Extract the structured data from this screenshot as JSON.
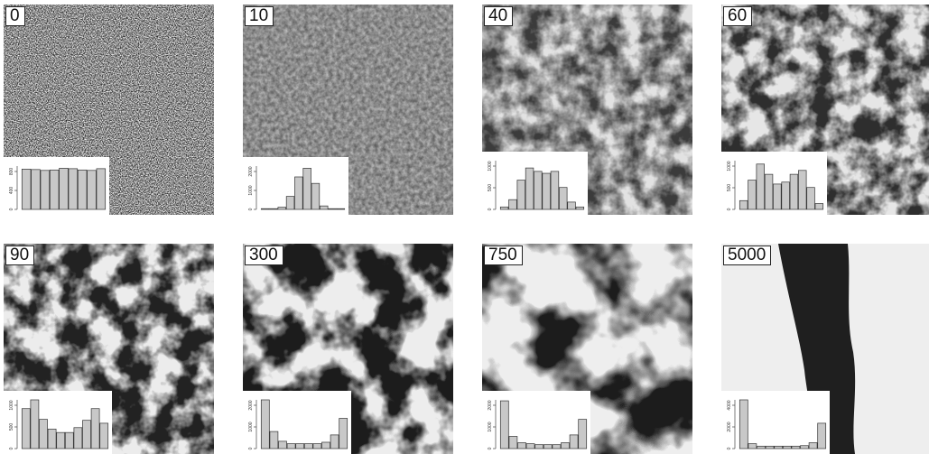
{
  "panels": [
    {
      "label": "0",
      "hist": [
        0.93,
        0.92,
        0.9,
        0.91,
        0.95,
        0.94,
        0.91,
        0.9,
        0.94
      ],
      "yticks": [
        "0",
        "400",
        "800"
      ]
    },
    {
      "label": "10",
      "hist": [
        0.0,
        0.0,
        0.05,
        0.3,
        0.75,
        0.95,
        0.6,
        0.08,
        0.0,
        0.0
      ],
      "yticks": [
        "0",
        "1000",
        "2000"
      ]
    },
    {
      "label": "40",
      "hist": [
        0.05,
        0.2,
        0.6,
        0.85,
        0.78,
        0.74,
        0.78,
        0.45,
        0.15,
        0.05
      ],
      "yticks": [
        "0",
        "500",
        "1000"
      ]
    },
    {
      "label": "60",
      "hist": [
        0.18,
        0.6,
        0.93,
        0.72,
        0.52,
        0.56,
        0.72,
        0.8,
        0.45,
        0.12
      ],
      "yticks": [
        "0",
        "500",
        "1000"
      ]
    },
    {
      "label": "90",
      "hist": [
        0.82,
        1.0,
        0.6,
        0.4,
        0.33,
        0.33,
        0.43,
        0.58,
        0.82,
        0.52
      ],
      "yticks": [
        "0",
        "500",
        "1000"
      ]
    },
    {
      "label": "300",
      "hist": [
        1.0,
        0.35,
        0.15,
        0.1,
        0.1,
        0.1,
        0.1,
        0.13,
        0.28,
        0.62
      ],
      "yticks": [
        "0",
        "1000",
        "2000"
      ]
    },
    {
      "label": "750",
      "hist": [
        0.98,
        0.25,
        0.12,
        0.1,
        0.08,
        0.08,
        0.08,
        0.12,
        0.28,
        0.6
      ],
      "yticks": [
        "0",
        "1000",
        "2000"
      ]
    },
    {
      "label": "5000",
      "hist": [
        1.0,
        0.1,
        0.05,
        0.05,
        0.05,
        0.05,
        0.05,
        0.06,
        0.12,
        0.52
      ],
      "yticks": [
        "0",
        "2000",
        "4000"
      ]
    }
  ]
}
